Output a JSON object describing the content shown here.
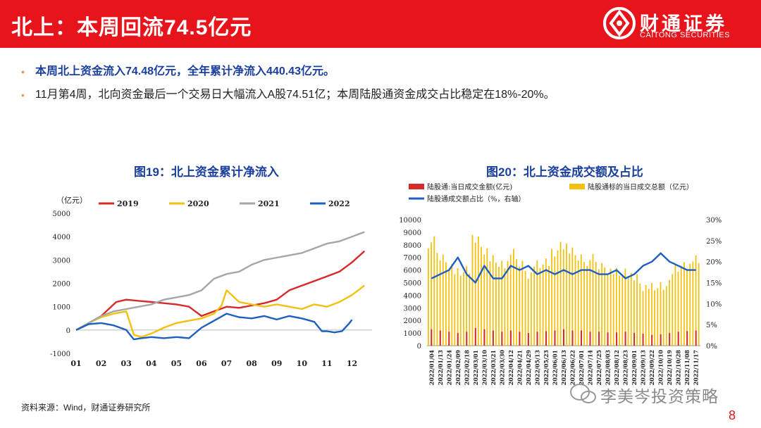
{
  "header": {
    "title": "北上：本周回流74.5亿元",
    "logo_cn": "财通证券",
    "logo_en": "CAITONG SECURITIES",
    "bg_color": "#e8141c"
  },
  "bullets": [
    "本周北上资金流入74.48亿元，全年累计净流入440.43亿元。",
    "11月第4周，北向资金最后一个交易日大幅流入A股74.51亿；本周陆股通资金成交占比稳定在18%-20%。"
  ],
  "source": "资料来源：Wind，财通证券研究所",
  "page_number": "8",
  "watermark": "李美岑投资策略",
  "chart_data": [
    {
      "type": "line",
      "title": "图19：北上资金累计净流入",
      "ylabel": "（亿元）",
      "ylim": [
        -1000,
        5000
      ],
      "yticks": [
        "-1000",
        "0",
        "1000",
        "2000",
        "3000",
        "4000",
        "5000"
      ],
      "xticks": [
        "01",
        "02",
        "03",
        "04",
        "05",
        "06",
        "07",
        "08",
        "09",
        "10",
        "11",
        "12"
      ],
      "series": [
        {
          "name": "2019",
          "color": "#d62a28",
          "x": [
            1,
            1.5,
            2,
            2.3,
            2.6,
            3,
            3.5,
            4,
            4.5,
            5,
            5.5,
            6,
            6.5,
            7,
            7.5,
            8,
            8.5,
            9,
            9.5,
            10,
            10.5,
            11,
            11.5,
            12,
            12.5
          ],
          "values": [
            0,
            300,
            600,
            900,
            1200,
            1300,
            1250,
            1200,
            1150,
            1100,
            1000,
            600,
            800,
            1000,
            950,
            1050,
            1150,
            1300,
            1700,
            1900,
            2100,
            2300,
            2500,
            2900,
            3380
          ]
        },
        {
          "name": "2020",
          "color": "#f2c10e",
          "x": [
            1,
            1.5,
            2,
            2.5,
            3,
            3.3,
            3.6,
            4,
            4.5,
            5,
            5.5,
            6,
            6.5,
            6.8,
            7,
            7.5,
            8,
            8.5,
            9,
            9.5,
            10,
            10.5,
            11,
            11.5,
            12,
            12.5
          ],
          "values": [
            0,
            300,
            550,
            700,
            800,
            -200,
            -300,
            -150,
            100,
            300,
            400,
            500,
            700,
            1050,
            1700,
            1200,
            1100,
            1000,
            1100,
            1000,
            900,
            1100,
            1000,
            1200,
            1500,
            1910
          ]
        },
        {
          "name": "2021",
          "color": "#a6a6a6",
          "x": [
            1,
            1.5,
            2,
            2.5,
            3,
            3.5,
            4,
            4.5,
            5,
            5.5,
            6,
            6.5,
            7,
            7.5,
            8,
            8.5,
            9,
            9.5,
            10,
            10.5,
            11,
            11.5,
            12,
            12.5
          ],
          "values": [
            0,
            300,
            600,
            800,
            900,
            1000,
            1100,
            1300,
            1400,
            1500,
            1700,
            2200,
            2400,
            2500,
            2800,
            3000,
            3100,
            3200,
            3300,
            3500,
            3700,
            3800,
            4000,
            4200
          ]
        },
        {
          "name": "2022",
          "color": "#1f5fbf",
          "x": [
            1,
            1.5,
            2,
            2.5,
            3,
            3.3,
            3.6,
            4,
            4.5,
            5,
            5.5,
            6,
            6.5,
            7,
            7.5,
            8,
            8.5,
            9,
            9.5,
            10,
            10.5,
            10.8,
            11,
            11.3,
            11.6,
            11.9,
            12
          ],
          "values": [
            0,
            250,
            300,
            200,
            0,
            -400,
            -350,
            -300,
            -350,
            -300,
            -350,
            100,
            400,
            700,
            550,
            500,
            600,
            450,
            600,
            500,
            350,
            -50,
            -50,
            -100,
            -50,
            300,
            440
          ]
        }
      ]
    },
    {
      "type": "bar",
      "title": "图20：北上资金成交额及占比",
      "ylim": [
        0,
        10000
      ],
      "y2lim": [
        0,
        30
      ],
      "yticks": [
        "0",
        "1000",
        "2000",
        "3000",
        "4000",
        "5000",
        "6000",
        "7000",
        "8000",
        "9000",
        "10000"
      ],
      "y2ticks": [
        "0%",
        "5%",
        "10%",
        "15%",
        "20%",
        "25%",
        "30%"
      ],
      "categories": [
        "2022/01/04",
        "2022/01/13",
        "2022/01/24",
        "2022/02/09",
        "2022/02/18",
        "2022/03/01",
        "2022/03/10",
        "2022/03/21",
        "2022/03/30",
        "2022/04/12",
        "2022/04/21",
        "2022/04/29",
        "2022/05/13",
        "2022/05/23",
        "2022/06/01",
        "2022/06/13",
        "2022/06/22",
        "2022/07/01",
        "2022/07/14",
        "2022/07/25",
        "2022/08/03",
        "2022/08/12",
        "2022/08/23",
        "2022/09/01",
        "2022/09/13",
        "2022/09/22",
        "2022/10/10",
        "2022/10/19",
        "2022/10/28",
        "2022/11/08",
        "2022/11/17"
      ],
      "series": [
        {
          "name": "陆股通:当日成交金额(亿元)",
          "color": "#d62a28",
          "axis": "left",
          "values": [
            1300,
            1200,
            1100,
            1000,
            1100,
            1400,
            1300,
            1200,
            1100,
            1200,
            1100,
            1000,
            1100,
            1150,
            1200,
            1300,
            1200,
            1200,
            1100,
            1100,
            1050,
            1050,
            1100,
            1000,
            950,
            850,
            900,
            1000,
            1100,
            1150,
            1200
          ]
        },
        {
          "name": "陆股通标的当日成交总额（亿元）",
          "color": "#f2c10e",
          "axis": "left",
          "values": [
            8200,
            7000,
            6500,
            5800,
            6200,
            8300,
            7600,
            6700,
            6500,
            7200,
            6500,
            5800,
            6400,
            6800,
            7200,
            8000,
            7300,
            7000,
            6800,
            6300,
            6100,
            5800,
            6000,
            5300,
            4700,
            4500,
            4800,
            5200,
            6100,
            6500,
            6800
          ]
        },
        {
          "name": "陆股通成交额占比（%，右轴）",
          "color": "#1f5fbf",
          "axis": "right",
          "type": "line",
          "values": [
            16,
            17,
            18,
            21,
            17,
            15,
            19,
            16,
            16,
            19,
            18,
            19,
            17,
            18,
            17,
            18,
            17,
            18,
            18,
            17,
            17,
            18,
            16,
            17,
            19,
            20,
            22,
            20,
            19,
            18,
            18
          ]
        }
      ]
    }
  ]
}
